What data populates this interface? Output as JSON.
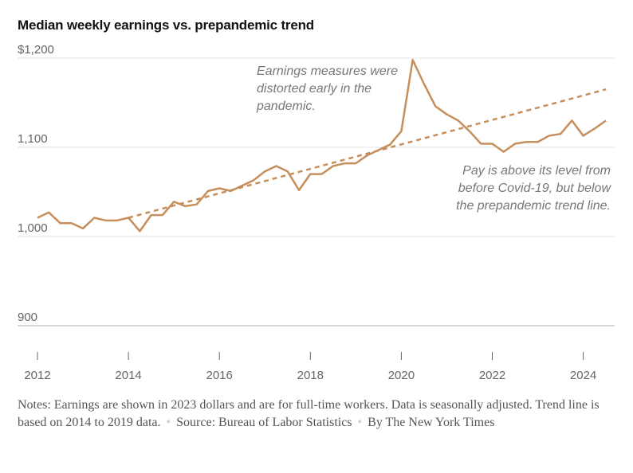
{
  "chart_data": {
    "type": "line",
    "title": "Median weekly earnings vs. prepandemic trend",
    "xlabel": "",
    "ylabel": "",
    "ylim": [
      865,
      1200
    ],
    "xlim": [
      2012,
      2024.75
    ],
    "grid": true,
    "y_ticks": [
      {
        "value": 1200,
        "label": "$1,200"
      },
      {
        "value": 1100,
        "label": "1,100"
      },
      {
        "value": 1000,
        "label": "1,000"
      },
      {
        "value": 900,
        "label": "900"
      }
    ],
    "x_ticks": [
      {
        "value": 2012,
        "label": "2012"
      },
      {
        "value": 2014,
        "label": "2014"
      },
      {
        "value": 2016,
        "label": "2016"
      },
      {
        "value": 2018,
        "label": "2018"
      },
      {
        "value": 2020,
        "label": "2020"
      },
      {
        "value": 2022,
        "label": "2022"
      },
      {
        "value": 2024,
        "label": "2024"
      }
    ],
    "series": [
      {
        "name": "Median weekly earnings",
        "style": "solid",
        "color": "#c68e5b",
        "x_start": 2012,
        "x_step": 0.25,
        "values": [
          1021,
          1027,
          1015,
          1015,
          1009,
          1021,
          1018,
          1018,
          1021,
          1006,
          1024,
          1024,
          1039,
          1034,
          1036,
          1051,
          1054,
          1051,
          1057,
          1063,
          1073,
          1079,
          1073,
          1052,
          1070,
          1070,
          1079,
          1082,
          1082,
          1091,
          1097,
          1103,
          1118,
          1198,
          1171,
          1146,
          1137,
          1130,
          1118,
          1104,
          1104,
          1095,
          1104,
          1106,
          1106,
          1113,
          1115,
          1130,
          1113,
          1121,
          1130
        ]
      },
      {
        "name": "Prepandemic trend",
        "style": "dashed",
        "color": "#c68e5b",
        "x": [
          2014,
          2024.5
        ],
        "values": [
          1021,
          1165
        ]
      }
    ],
    "annotations": [
      {
        "lines": [
          "Earnings measures were",
          "distorted early in the",
          "pandemic."
        ]
      },
      {
        "lines": [
          "Pay is above its level from",
          "before Covid-19, but below",
          "the prepandemic trend line."
        ]
      }
    ]
  },
  "notes": {
    "line": "Notes: Earnings are shown in 2023 dollars and are for full-time workers. Data is seasonally adjusted. Trend line is based on 2014 to 2019 data.",
    "source": "Source: Bureau of Labor Statistics",
    "credit": "By The New York Times"
  }
}
